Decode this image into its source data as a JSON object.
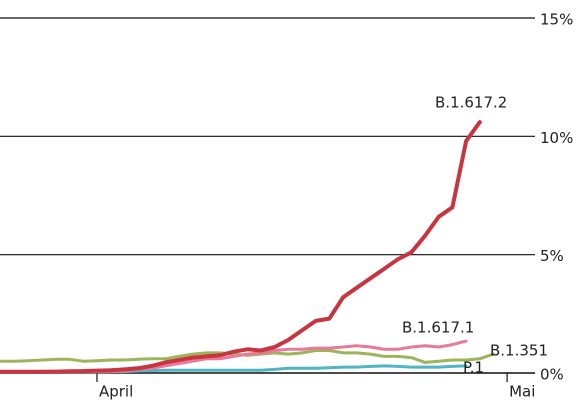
{
  "chart_data": {
    "type": "line",
    "categories": [
      null,
      null,
      null,
      null,
      null,
      null,
      null,
      "April",
      null,
      null,
      null,
      null,
      null,
      null,
      null,
      null,
      null,
      null,
      null,
      null,
      null,
      null,
      null,
      null,
      null,
      null,
      null,
      null,
      null,
      null,
      null,
      null,
      null,
      null,
      null,
      null,
      null,
      "Mai"
    ],
    "ylim": [
      0,
      15
    ],
    "yticks": [
      {
        "value": 0,
        "label": "0%"
      },
      {
        "value": 5,
        "label": "5%"
      },
      {
        "value": 10,
        "label": "10%"
      },
      {
        "value": 15,
        "label": "15%"
      }
    ],
    "grid": true,
    "series": [
      {
        "name": "P.1",
        "color": "#4fb5c4",
        "values": [
          0.05,
          0.05,
          0.05,
          0.05,
          0.05,
          0.05,
          0.05,
          0.05,
          0.06,
          0.06,
          0.08,
          0.1,
          0.12,
          0.12,
          0.12,
          0.12,
          0.12,
          0.12,
          0.12,
          0.12,
          0.15,
          0.2,
          0.2,
          0.2,
          0.22,
          0.25,
          0.25,
          0.28,
          0.3,
          0.28,
          0.25,
          0.25,
          0.25,
          0.28,
          0.3,
          null,
          null,
          null
        ]
      },
      {
        "name": "B.1.351",
        "color": "#9cb55a",
        "values": [
          0.5,
          0.5,
          0.52,
          0.55,
          0.58,
          0.58,
          0.5,
          0.52,
          0.55,
          0.55,
          0.58,
          0.6,
          0.6,
          0.7,
          0.8,
          0.85,
          0.85,
          0.8,
          0.75,
          0.8,
          0.85,
          0.8,
          0.85,
          0.95,
          0.95,
          0.85,
          0.85,
          0.8,
          0.7,
          0.7,
          0.65,
          0.45,
          0.5,
          0.55,
          0.55,
          0.6,
          0.8,
          null
        ]
      },
      {
        "name": "B.1.617.1",
        "color": "#e8799a",
        "values": [
          0.05,
          0.05,
          0.05,
          0.05,
          0.05,
          0.05,
          0.05,
          0.05,
          0.06,
          0.08,
          0.15,
          0.2,
          0.3,
          0.4,
          0.5,
          0.6,
          0.6,
          0.7,
          0.8,
          0.85,
          0.95,
          1.0,
          1.0,
          1.05,
          1.05,
          1.1,
          1.15,
          1.1,
          1.0,
          1.0,
          1.1,
          1.15,
          1.1,
          1.2,
          1.35,
          null,
          null,
          null
        ]
      },
      {
        "name": "B.1.617.2",
        "color": "#c8343f",
        "values": [
          0.05,
          0.05,
          0.05,
          0.05,
          0.06,
          0.07,
          0.08,
          0.1,
          0.12,
          0.15,
          0.2,
          0.3,
          0.45,
          0.55,
          0.65,
          0.7,
          0.75,
          0.9,
          1.0,
          0.95,
          1.1,
          1.4,
          1.8,
          2.2,
          2.3,
          3.2,
          3.6,
          4.0,
          4.4,
          4.8,
          5.1,
          5.8,
          6.6,
          7.0,
          9.8,
          10.6,
          null,
          null
        ]
      }
    ]
  }
}
